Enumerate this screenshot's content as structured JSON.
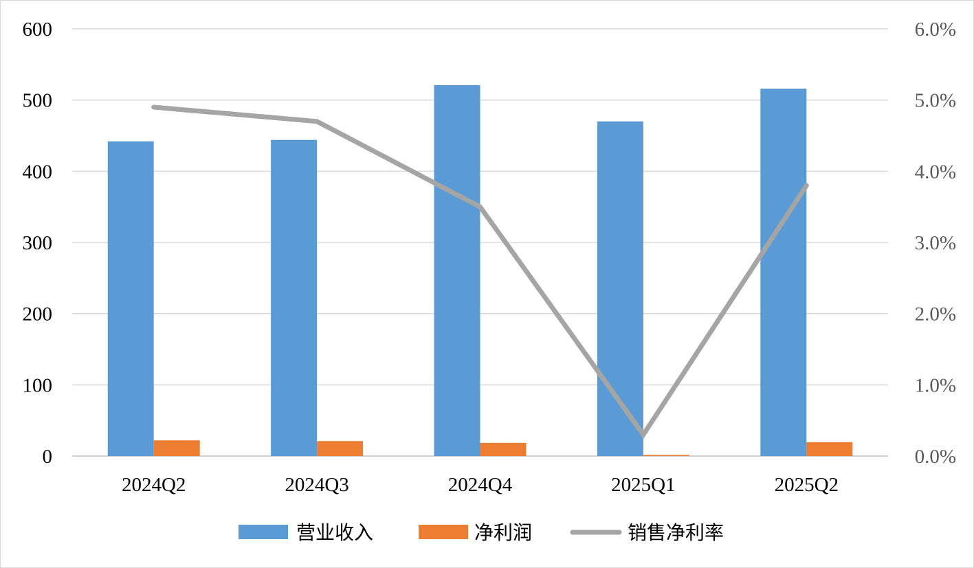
{
  "chart_data": {
    "type": "bar",
    "categories": [
      "2024Q2",
      "2024Q3",
      "2024Q4",
      "2025Q1",
      "2025Q2"
    ],
    "series": [
      {
        "name": "营业收入",
        "type": "bar",
        "axis": "left",
        "color": "#5B9BD5",
        "values": [
          442,
          444,
          521,
          470,
          516
        ]
      },
      {
        "name": "净利润",
        "type": "bar",
        "axis": "left",
        "color": "#ED7D31",
        "values": [
          22,
          21,
          18.5,
          1.5,
          19.5
        ]
      },
      {
        "name": "销售净利率",
        "type": "line",
        "axis": "right",
        "color": "#A5A5A5",
        "values": [
          0.049,
          0.047,
          0.035,
          0.003,
          0.038
        ]
      }
    ],
    "y_left": {
      "min": 0,
      "max": 600,
      "step": 100,
      "tick_labels": [
        "0",
        "100",
        "200",
        "300",
        "400",
        "500",
        "600"
      ]
    },
    "y_right": {
      "min": 0,
      "max": 0.06,
      "step": 0.01,
      "tick_labels": [
        "0.0%",
        "1.0%",
        "2.0%",
        "3.0%",
        "4.0%",
        "5.0%",
        "6.0%"
      ]
    },
    "grid": true,
    "legend": "bottom"
  }
}
